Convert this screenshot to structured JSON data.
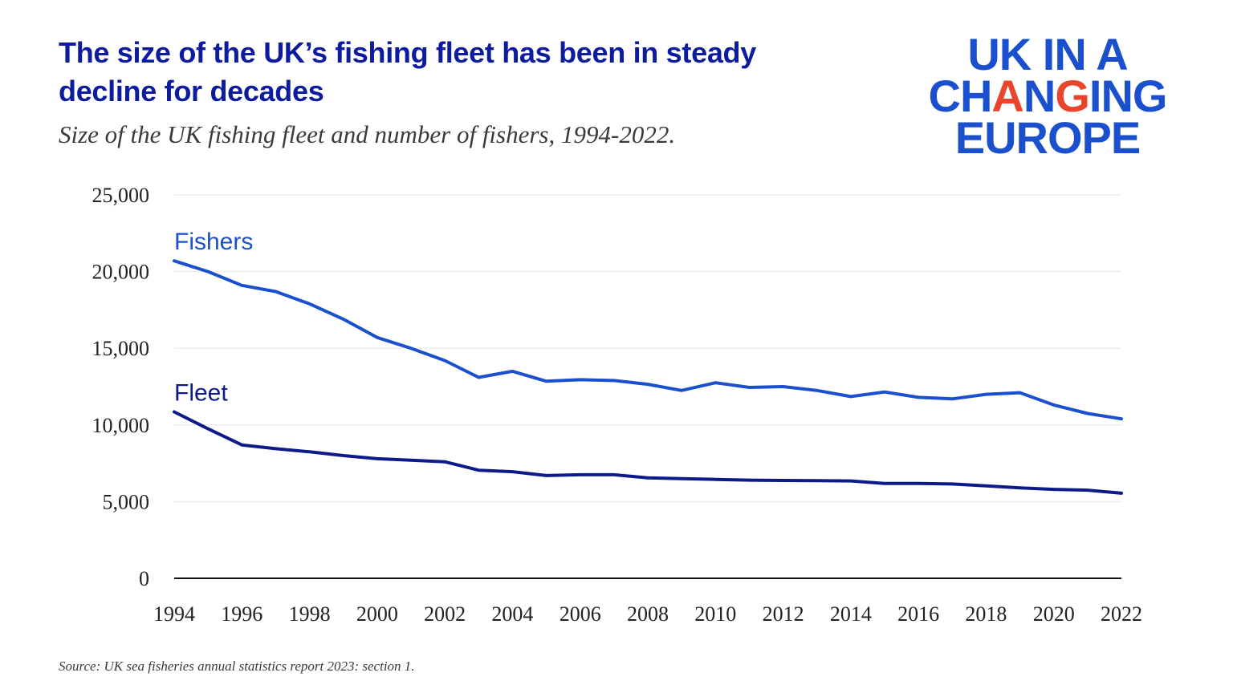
{
  "title": "The size of the UK’s fishing fleet has been in steady decline for decades",
  "subtitle": "Size of the UK fishing fleet and number of fishers, 1994-2022.",
  "logo": {
    "line1": "UK IN A",
    "line2_pre": "CH",
    "line2_accent": "A",
    "line2_mid": "N",
    "line2_accent2": "G",
    "line2_post": "ING",
    "line3": "EUROPE"
  },
  "source": "Source: UK sea fisheries annual statistics report 2023: section 1.",
  "colors": {
    "fishers": "#1a4fce",
    "fleet": "#0d1b8a",
    "title": "#0d1b9e",
    "logo": "#1a4fce",
    "logo_accent": "#e8452c",
    "axis_text": "#222222",
    "grid": "#e6e6e6"
  },
  "chart_data": {
    "type": "line",
    "title": "",
    "xlabel": "",
    "ylabel": "",
    "x": [
      1994,
      1995,
      1996,
      1997,
      1998,
      1999,
      2000,
      2001,
      2002,
      2003,
      2004,
      2005,
      2006,
      2007,
      2008,
      2009,
      2010,
      2011,
      2012,
      2013,
      2014,
      2015,
      2016,
      2017,
      2018,
      2019,
      2020,
      2021,
      2022
    ],
    "xticks": [
      "1994",
      "1996",
      "1998",
      "2000",
      "2002",
      "2004",
      "2006",
      "2008",
      "2010",
      "2012",
      "2014",
      "2016",
      "2018",
      "2020",
      "2022"
    ],
    "yticks": [
      "0",
      "5,000",
      "10,000",
      "15,000",
      "20,000",
      "25,000"
    ],
    "ylim": [
      0,
      25000
    ],
    "grid": true,
    "series": [
      {
        "name": "Fishers",
        "values": [
          20700,
          20000,
          19100,
          18700,
          17900,
          16900,
          15700,
          15000,
          14200,
          13100,
          13500,
          12850,
          12950,
          12900,
          12650,
          12250,
          12750,
          12450,
          12500,
          12250,
          11850,
          12150,
          11800,
          11700,
          12000,
          12100,
          11300,
          10750,
          10400
        ]
      },
      {
        "name": "Fleet",
        "values": [
          10850,
          9750,
          8700,
          8450,
          8250,
          8000,
          7800,
          7700,
          7600,
          7050,
          6950,
          6700,
          6750,
          6750,
          6550,
          6500,
          6450,
          6400,
          6380,
          6370,
          6350,
          6180,
          6180,
          6150,
          6030,
          5900,
          5800,
          5750,
          5550
        ]
      }
    ]
  }
}
